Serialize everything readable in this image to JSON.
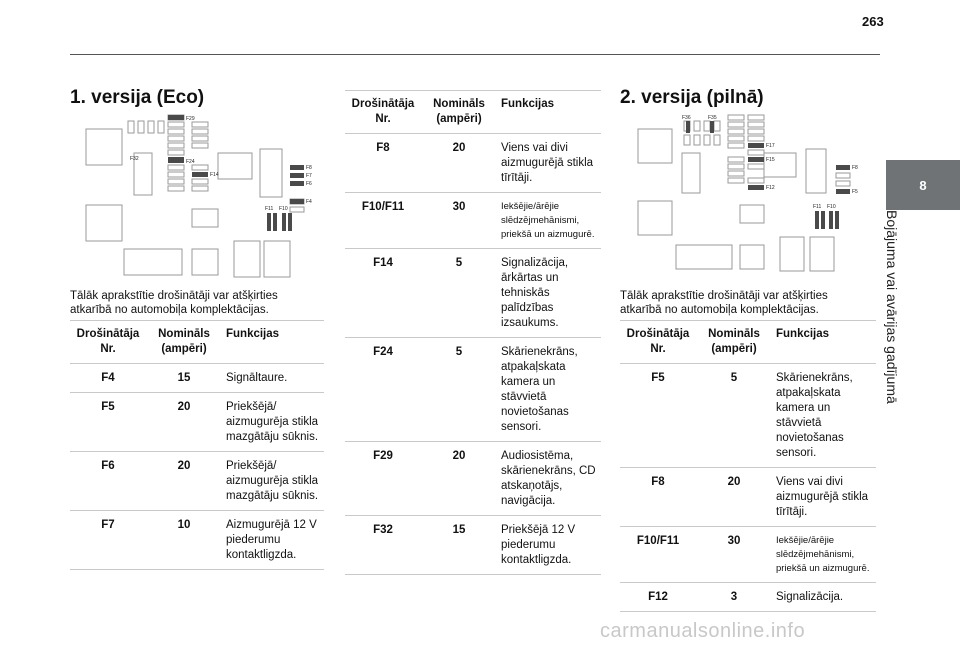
{
  "page": {
    "number": "263"
  },
  "side_tab": {
    "chapter": "8",
    "title": "Bojājuma vai avārijas gadījumā"
  },
  "version_eco": {
    "heading": "1. versija (Eco)",
    "diagram_labels": [
      "F29",
      "F32",
      "F24",
      "F14",
      "F8",
      "F7",
      "F6",
      "F4",
      "F11",
      "F10"
    ],
    "intro": [
      "Tālāk aprakstītie drošinātāji var atšķirties",
      "atkarībā no automobiļa komplektācijas."
    ],
    "headers": [
      "Drošinātāja Nr.",
      "Nomināls (ampēri)",
      "Funkcijas"
    ],
    "rows": [
      {
        "nr": "F4",
        "amp": "15",
        "fn": "Signāltaure."
      },
      {
        "nr": "F5",
        "amp": "20",
        "fn": "Priekšējā/ aizmugurēja stikla mazgātāju sūknis."
      },
      {
        "nr": "F6",
        "amp": "20",
        "fn": "Priekšējā/ aizmugurēja stikla mazgātāju sūknis."
      },
      {
        "nr": "F7",
        "amp": "10",
        "fn": "Aizmugurējā 12 V piederumu kontaktligzda."
      }
    ]
  },
  "middle_table": {
    "headers": [
      "Drošinātāja Nr.",
      "Nomināls (ampēri)",
      "Funkcijas"
    ],
    "rows": [
      {
        "nr": "F8",
        "amp": "20",
        "fn": "Viens vai divi aizmugurējā stikla tīrītāji."
      },
      {
        "nr": "F10/F11",
        "amp": "30",
        "fn": "Iekšējie/ārējie slēdzējmehānismi, priekšā un aizmugurē."
      },
      {
        "nr": "F14",
        "amp": "5",
        "fn": "Signalizācija, ārkārtas un tehniskās palīdzības izsaukums."
      },
      {
        "nr": "F24",
        "amp": "5",
        "fn": "Skārienekrāns, atpakaļskata kamera un stāvvietā novietošanas sensori."
      },
      {
        "nr": "F29",
        "amp": "20",
        "fn": "Audiosistēma, skārienekrāns, CD atskaņotājs, navigācija."
      },
      {
        "nr": "F32",
        "amp": "15",
        "fn": "Priekšējā 12 V piederumu kontaktligzda."
      }
    ]
  },
  "version_full": {
    "heading": "2. versija (pilnā)",
    "diagram_labels": [
      "F36",
      "F35",
      "F17",
      "F15",
      "F12",
      "F8",
      "F5",
      "F11",
      "F10"
    ],
    "intro": [
      "Tālāk aprakstītie drošinātāji var atšķirties",
      "atkarībā no automobiļa komplektācijas."
    ],
    "headers": [
      "Drošinātāja Nr.",
      "Nomināls (ampēri)",
      "Funkcijas"
    ],
    "rows": [
      {
        "nr": "F5",
        "amp": "5",
        "fn": "Skārienekrāns, atpakaļskata kamera un stāvvietā novietošanas sensori."
      },
      {
        "nr": "F8",
        "amp": "20",
        "fn": "Viens vai divi aizmugurējā stikla tīrītāji."
      },
      {
        "nr": "F10/F11",
        "amp": "30",
        "fn": "Iekšējie/ārējie slēdzējmehānismi, priekšā un aizmugurē."
      },
      {
        "nr": "F12",
        "amp": "3",
        "fn": "Signalizācija."
      }
    ]
  },
  "watermark": "carmanualsonline.info"
}
